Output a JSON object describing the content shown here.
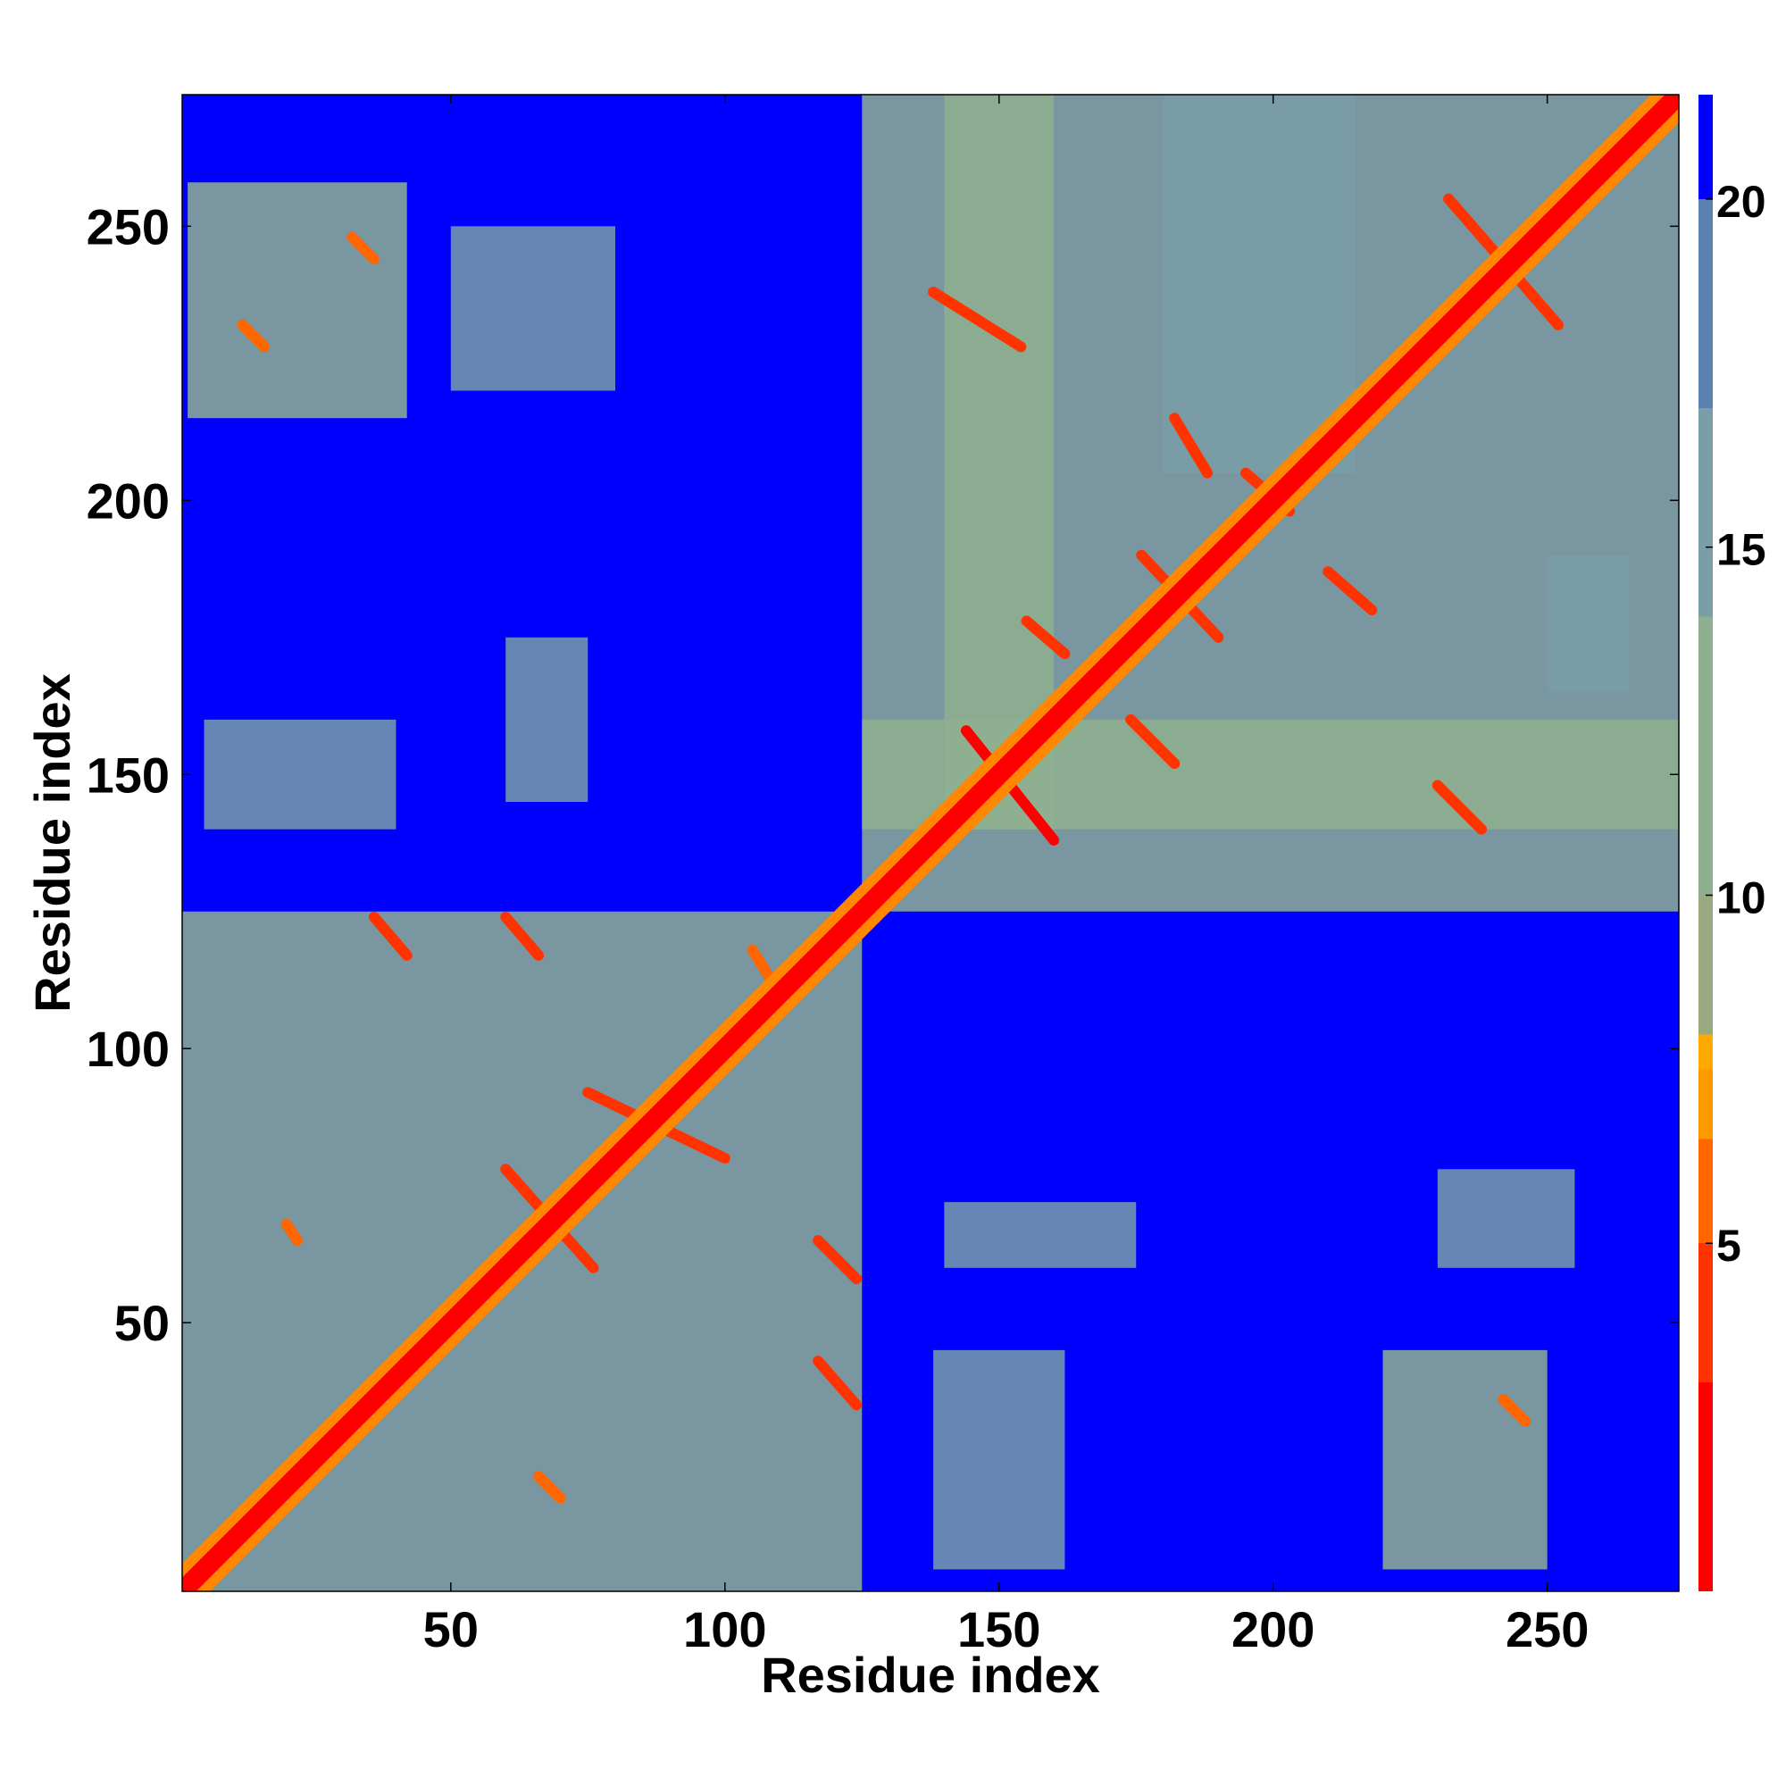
{
  "chart_data": {
    "type": "heatmap",
    "title": "",
    "xlabel": "Residue index",
    "ylabel": "Residue index",
    "n_residues": 274,
    "xlim": [
      1,
      274
    ],
    "ylim": [
      1,
      274
    ],
    "x_ticks": [
      50,
      100,
      150,
      200,
      250
    ],
    "y_ticks": [
      50,
      100,
      150,
      200,
      250
    ],
    "colorbar": {
      "ticks": [
        5,
        10,
        15,
        20
      ],
      "range": [
        0,
        21.5
      ],
      "colors": [
        "#ff0000",
        "#ff3300",
        "#ff6600",
        "#ff9900",
        "#ffaa00",
        "#9aaa80",
        "#8fb08f",
        "#7a9ea8",
        "#5a80b0",
        "#0000ff"
      ],
      "stops": [
        3,
        5,
        6.5,
        7.5,
        8,
        10,
        14,
        17,
        20,
        21.5
      ]
    },
    "background_color": "#0000ff",
    "diagonal": {
      "x": [
        1,
        274
      ],
      "y": [
        1,
        274
      ],
      "value": 0
    },
    "contact_blocks": [
      {
        "x": [
          1,
          125
        ],
        "y": [
          1,
          125
        ],
        "value": 12
      },
      {
        "x": [
          125,
          274
        ],
        "y": [
          125,
          274
        ],
        "value": 12
      },
      {
        "x": [
          2,
          42
        ],
        "y": [
          215,
          258
        ],
        "value": 13
      },
      {
        "x": [
          50,
          80
        ],
        "y": [
          220,
          250
        ],
        "value": 16
      },
      {
        "x": [
          140,
          160
        ],
        "y": [
          140,
          274
        ],
        "value": 13
      },
      {
        "x": [
          125,
          274
        ],
        "y": [
          140,
          160
        ],
        "value": 13
      },
      {
        "x": [
          220,
          250
        ],
        "y": [
          5,
          45
        ],
        "value": 13
      },
      {
        "x": [
          230,
          255
        ],
        "y": [
          60,
          78
        ],
        "value": 15
      },
      {
        "x": [
          138,
          162
        ],
        "y": [
          5,
          45
        ],
        "value": 16
      },
      {
        "x": [
          140,
          175
        ],
        "y": [
          60,
          72
        ],
        "value": 17
      },
      {
        "x": [
          5,
          40
        ],
        "y": [
          140,
          160
        ],
        "value": 17
      },
      {
        "x": [
          60,
          75
        ],
        "y": [
          145,
          175
        ],
        "value": 17
      },
      {
        "x": [
          180,
          215
        ],
        "y": [
          205,
          274
        ],
        "value": 15
      },
      {
        "x": [
          250,
          265
        ],
        "y": [
          165,
          190
        ],
        "value": 17
      }
    ],
    "contact_lines": [
      {
        "x": [
          144,
          160
        ],
        "y": [
          158,
          138
        ],
        "value": 3
      },
      {
        "x": [
          138,
          154
        ],
        "y": [
          238,
          228
        ],
        "value": 4
      },
      {
        "x": [
          232,
          252
        ],
        "y": [
          255,
          232
        ],
        "value": 4
      },
      {
        "x": [
          230,
          238
        ],
        "y": [
          148,
          140
        ],
        "value": 5
      },
      {
        "x": [
          174,
          182
        ],
        "y": [
          160,
          152
        ],
        "value": 5
      },
      {
        "x": [
          176,
          190
        ],
        "y": [
          190,
          175
        ],
        "value": 4
      },
      {
        "x": [
          155,
          162
        ],
        "y": [
          178,
          172
        ],
        "value": 5
      },
      {
        "x": [
          195,
          203
        ],
        "y": [
          205,
          198
        ],
        "value": 4
      },
      {
        "x": [
          210,
          218
        ],
        "y": [
          187,
          180
        ],
        "value": 5
      },
      {
        "x": [
          182,
          188
        ],
        "y": [
          215,
          205
        ],
        "value": 5
      },
      {
        "x": [
          60,
          76
        ],
        "y": [
          78,
          60
        ],
        "value": 4
      },
      {
        "x": [
          75,
          100
        ],
        "y": [
          92,
          80
        ],
        "value": 4
      },
      {
        "x": [
          36,
          42
        ],
        "y": [
          124,
          117
        ],
        "value": 5
      },
      {
        "x": [
          60,
          66
        ],
        "y": [
          124,
          117
        ],
        "value": 5
      },
      {
        "x": [
          117,
          124
        ],
        "y": [
          65,
          58
        ],
        "value": 5
      },
      {
        "x": [
          117,
          124
        ],
        "y": [
          43,
          35
        ],
        "value": 5
      },
      {
        "x": [
          105,
          110
        ],
        "y": [
          118,
          110
        ],
        "value": 6
      },
      {
        "x": [
          12,
          16
        ],
        "y": [
          232,
          228
        ],
        "value": 6
      },
      {
        "x": [
          32,
          36
        ],
        "y": [
          248,
          244
        ],
        "value": 6
      },
      {
        "x": [
          20,
          22
        ],
        "y": [
          68,
          65
        ],
        "value": 6
      },
      {
        "x": [
          66,
          70
        ],
        "y": [
          22,
          18
        ],
        "value": 6
      },
      {
        "x": [
          242,
          246
        ],
        "y": [
          36,
          32
        ],
        "value": 6
      }
    ]
  }
}
